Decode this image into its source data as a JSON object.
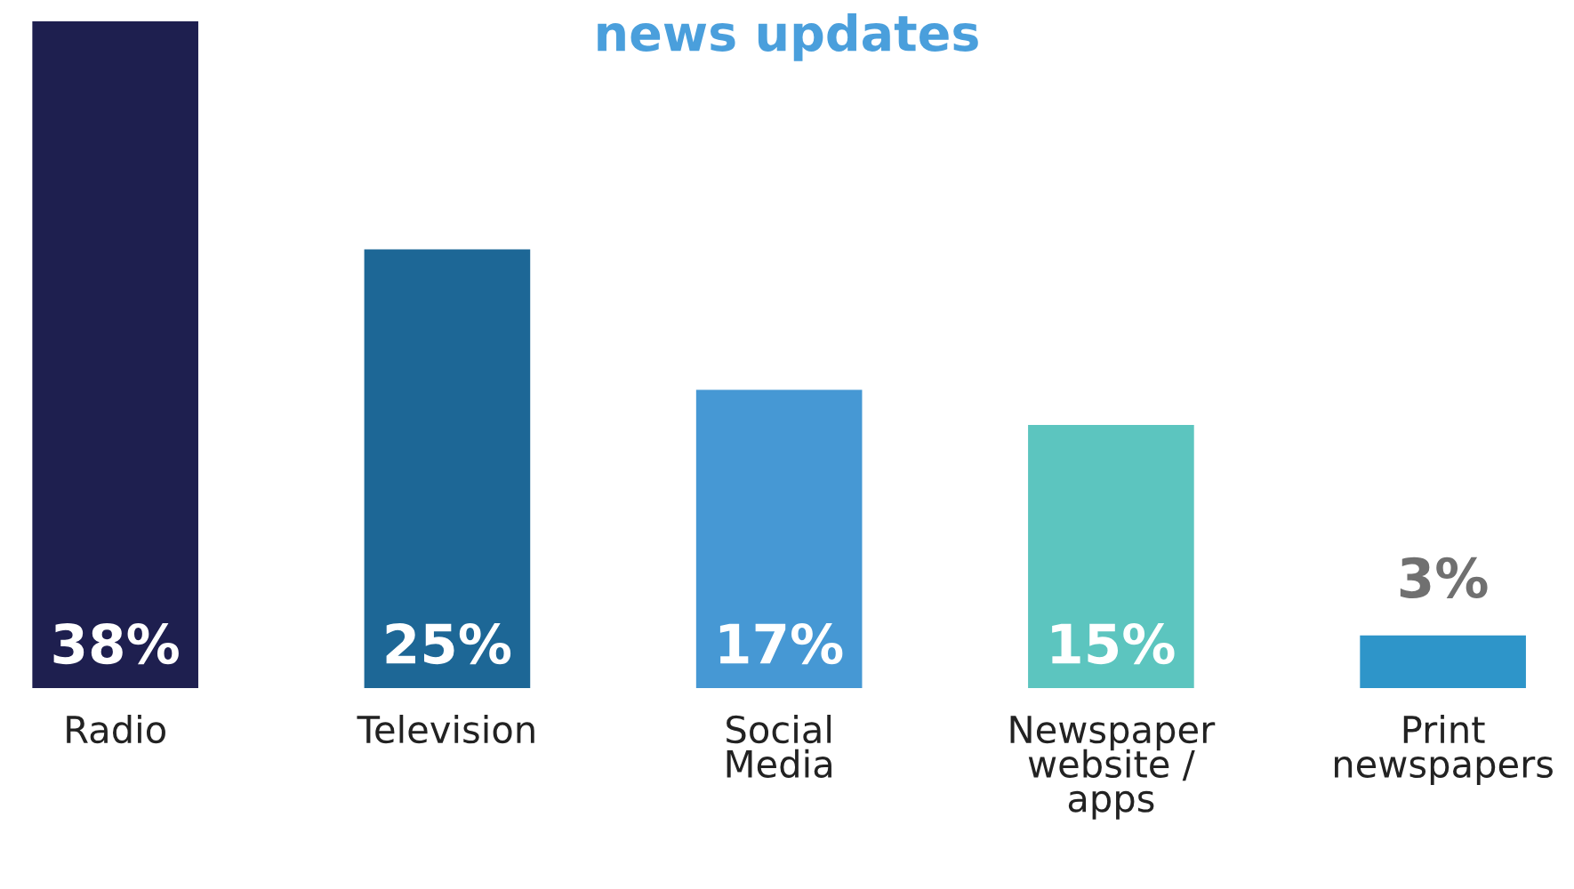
{
  "chart_data": {
    "type": "bar",
    "title": "news updates",
    "categories": [
      "Radio",
      "Television",
      "Social\nMedia",
      "Newspaper\nwebsite /\napps",
      "Print\nnewspapers"
    ],
    "values": [
      38,
      25,
      17,
      15,
      3
    ],
    "colors": [
      "#1e1f4f",
      "#1d6796",
      "#4698d4",
      "#5cc5bf",
      "#2e95c9"
    ],
    "value_labels": [
      "38%",
      "25%",
      "17%",
      "15%",
      "3%"
    ]
  }
}
